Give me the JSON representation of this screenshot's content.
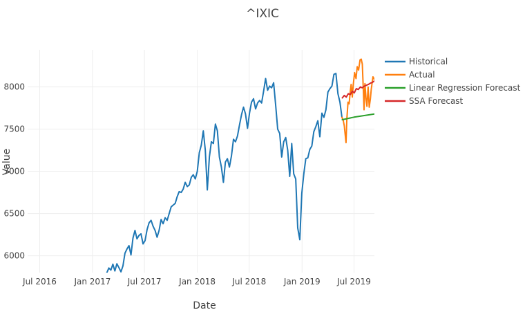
{
  "chart_data": {
    "type": "line",
    "title": "^IXIC",
    "xlabel": "Date",
    "ylabel": "Value",
    "xlim": [
      "2016-05-20",
      "2019-09-10"
    ],
    "ylim": [
      5800,
      8440
    ],
    "grid": true,
    "legend_position": "top-right",
    "x_ticks": [
      {
        "date": "2016-07-01",
        "label": "Jul 2016"
      },
      {
        "date": "2017-01-01",
        "label": "Jan 2017"
      },
      {
        "date": "2017-07-01",
        "label": "Jul 2017"
      },
      {
        "date": "2018-01-01",
        "label": "Jan 2018"
      },
      {
        "date": "2018-07-01",
        "label": "Jul 2018"
      },
      {
        "date": "2019-01-01",
        "label": "Jan 2019"
      },
      {
        "date": "2019-07-01",
        "label": "Jul 2019"
      }
    ],
    "y_ticks": [
      6000,
      6500,
      7000,
      7500,
      8000
    ],
    "series": [
      {
        "name": "Historical",
        "color": "#1f77b4",
        "points": [
          [
            "2017-02-20",
            5800
          ],
          [
            "2017-02-27",
            5855
          ],
          [
            "2017-03-06",
            5830
          ],
          [
            "2017-03-13",
            5900
          ],
          [
            "2017-03-20",
            5820
          ],
          [
            "2017-03-27",
            5905
          ],
          [
            "2017-04-03",
            5860
          ],
          [
            "2017-04-10",
            5810
          ],
          [
            "2017-04-17",
            5880
          ],
          [
            "2017-04-24",
            6030
          ],
          [
            "2017-05-01",
            6080
          ],
          [
            "2017-05-08",
            6120
          ],
          [
            "2017-05-15",
            6010
          ],
          [
            "2017-05-22",
            6210
          ],
          [
            "2017-05-29",
            6300
          ],
          [
            "2017-06-05",
            6200
          ],
          [
            "2017-06-12",
            6240
          ],
          [
            "2017-06-19",
            6260
          ],
          [
            "2017-06-26",
            6140
          ],
          [
            "2017-07-03",
            6180
          ],
          [
            "2017-07-10",
            6310
          ],
          [
            "2017-07-17",
            6390
          ],
          [
            "2017-07-24",
            6420
          ],
          [
            "2017-07-31",
            6350
          ],
          [
            "2017-08-07",
            6300
          ],
          [
            "2017-08-14",
            6220
          ],
          [
            "2017-08-21",
            6300
          ],
          [
            "2017-08-28",
            6430
          ],
          [
            "2017-09-04",
            6380
          ],
          [
            "2017-09-11",
            6450
          ],
          [
            "2017-09-18",
            6420
          ],
          [
            "2017-09-25",
            6500
          ],
          [
            "2017-10-02",
            6580
          ],
          [
            "2017-10-09",
            6600
          ],
          [
            "2017-10-16",
            6620
          ],
          [
            "2017-10-23",
            6700
          ],
          [
            "2017-10-30",
            6760
          ],
          [
            "2017-11-06",
            6750
          ],
          [
            "2017-11-13",
            6790
          ],
          [
            "2017-11-20",
            6870
          ],
          [
            "2017-11-27",
            6820
          ],
          [
            "2017-12-04",
            6840
          ],
          [
            "2017-12-11",
            6930
          ],
          [
            "2017-12-18",
            6960
          ],
          [
            "2017-12-25",
            6910
          ],
          [
            "2018-01-01",
            7000
          ],
          [
            "2018-01-08",
            7220
          ],
          [
            "2018-01-15",
            7310
          ],
          [
            "2018-01-22",
            7480
          ],
          [
            "2018-01-29",
            7250
          ],
          [
            "2018-02-05",
            6780
          ],
          [
            "2018-02-12",
            7170
          ],
          [
            "2018-02-19",
            7350
          ],
          [
            "2018-02-26",
            7330
          ],
          [
            "2018-03-05",
            7560
          ],
          [
            "2018-03-12",
            7480
          ],
          [
            "2018-03-19",
            7170
          ],
          [
            "2018-03-26",
            7050
          ],
          [
            "2018-04-02",
            6870
          ],
          [
            "2018-04-09",
            7110
          ],
          [
            "2018-04-16",
            7150
          ],
          [
            "2018-04-23",
            7050
          ],
          [
            "2018-04-30",
            7180
          ],
          [
            "2018-05-07",
            7380
          ],
          [
            "2018-05-14",
            7350
          ],
          [
            "2018-05-21",
            7420
          ],
          [
            "2018-05-28",
            7550
          ],
          [
            "2018-06-04",
            7670
          ],
          [
            "2018-06-11",
            7760
          ],
          [
            "2018-06-18",
            7680
          ],
          [
            "2018-06-25",
            7510
          ],
          [
            "2018-07-02",
            7690
          ],
          [
            "2018-07-09",
            7820
          ],
          [
            "2018-07-16",
            7860
          ],
          [
            "2018-07-23",
            7740
          ],
          [
            "2018-07-30",
            7810
          ],
          [
            "2018-08-06",
            7840
          ],
          [
            "2018-08-13",
            7810
          ],
          [
            "2018-08-20",
            7950
          ],
          [
            "2018-08-27",
            8100
          ],
          [
            "2018-09-03",
            7960
          ],
          [
            "2018-09-10",
            8010
          ],
          [
            "2018-09-17",
            7990
          ],
          [
            "2018-09-24",
            8050
          ],
          [
            "2018-10-01",
            7790
          ],
          [
            "2018-10-08",
            7500
          ],
          [
            "2018-10-15",
            7450
          ],
          [
            "2018-10-22",
            7170
          ],
          [
            "2018-10-29",
            7350
          ],
          [
            "2018-11-05",
            7400
          ],
          [
            "2018-11-12",
            7250
          ],
          [
            "2018-11-19",
            6940
          ],
          [
            "2018-11-26",
            7330
          ],
          [
            "2018-12-03",
            6970
          ],
          [
            "2018-12-10",
            6910
          ],
          [
            "2018-12-17",
            6330
          ],
          [
            "2018-12-24",
            6190
          ],
          [
            "2018-12-31",
            6740
          ],
          [
            "2019-01-07",
            6970
          ],
          [
            "2019-01-14",
            7150
          ],
          [
            "2019-01-21",
            7160
          ],
          [
            "2019-01-28",
            7260
          ],
          [
            "2019-02-04",
            7300
          ],
          [
            "2019-02-11",
            7470
          ],
          [
            "2019-02-18",
            7530
          ],
          [
            "2019-02-25",
            7600
          ],
          [
            "2019-03-04",
            7410
          ],
          [
            "2019-03-11",
            7690
          ],
          [
            "2019-03-18",
            7640
          ],
          [
            "2019-03-25",
            7730
          ],
          [
            "2019-04-01",
            7940
          ],
          [
            "2019-04-08",
            7980
          ],
          [
            "2019-04-15",
            8010
          ],
          [
            "2019-04-22",
            8150
          ],
          [
            "2019-04-29",
            8160
          ],
          [
            "2019-05-06",
            7920
          ],
          [
            "2019-05-13",
            7820
          ],
          [
            "2019-05-20",
            7640
          ]
        ]
      },
      {
        "name": "Actual",
        "color": "#ff7f0e",
        "points": [
          [
            "2019-05-20",
            7640
          ],
          [
            "2019-05-24",
            7610
          ],
          [
            "2019-05-28",
            7540
          ],
          [
            "2019-06-03",
            7340
          ],
          [
            "2019-06-06",
            7620
          ],
          [
            "2019-06-10",
            7820
          ],
          [
            "2019-06-14",
            7800
          ],
          [
            "2019-06-18",
            7950
          ],
          [
            "2019-06-21",
            8030
          ],
          [
            "2019-06-25",
            7880
          ],
          [
            "2019-06-28",
            8010
          ],
          [
            "2019-07-03",
            8170
          ],
          [
            "2019-07-08",
            8100
          ],
          [
            "2019-07-12",
            8240
          ],
          [
            "2019-07-17",
            8200
          ],
          [
            "2019-07-22",
            8320
          ],
          [
            "2019-07-26",
            8330
          ],
          [
            "2019-07-30",
            8270
          ],
          [
            "2019-08-02",
            8000
          ],
          [
            "2019-08-05",
            7730
          ],
          [
            "2019-08-08",
            8040
          ],
          [
            "2019-08-12",
            7860
          ],
          [
            "2019-08-15",
            7770
          ],
          [
            "2019-08-19",
            8000
          ],
          [
            "2019-08-23",
            7760
          ],
          [
            "2019-08-27",
            7860
          ],
          [
            "2019-08-30",
            7970
          ],
          [
            "2019-09-05",
            8120
          ],
          [
            "2019-09-10",
            8090
          ]
        ]
      },
      {
        "name": "Linear Regression Forecast",
        "color": "#2ca02c",
        "points": [
          [
            "2019-05-21",
            7612
          ],
          [
            "2019-07-01",
            7642
          ],
          [
            "2019-09-10",
            7680
          ]
        ]
      },
      {
        "name": "SSA Forecast",
        "color": "#d62728",
        "points": [
          [
            "2019-05-21",
            7870
          ],
          [
            "2019-05-28",
            7900
          ],
          [
            "2019-06-04",
            7880
          ],
          [
            "2019-06-11",
            7920
          ],
          [
            "2019-06-18",
            7910
          ],
          [
            "2019-06-25",
            7950
          ],
          [
            "2019-07-02",
            7930
          ],
          [
            "2019-07-09",
            7980
          ],
          [
            "2019-07-16",
            7970
          ],
          [
            "2019-07-23",
            8000
          ],
          [
            "2019-07-30",
            7990
          ],
          [
            "2019-08-06",
            8010
          ],
          [
            "2019-08-13",
            8020
          ],
          [
            "2019-08-20",
            8030
          ],
          [
            "2019-08-27",
            8045
          ],
          [
            "2019-09-03",
            8055
          ],
          [
            "2019-09-10",
            8070
          ]
        ]
      }
    ]
  }
}
